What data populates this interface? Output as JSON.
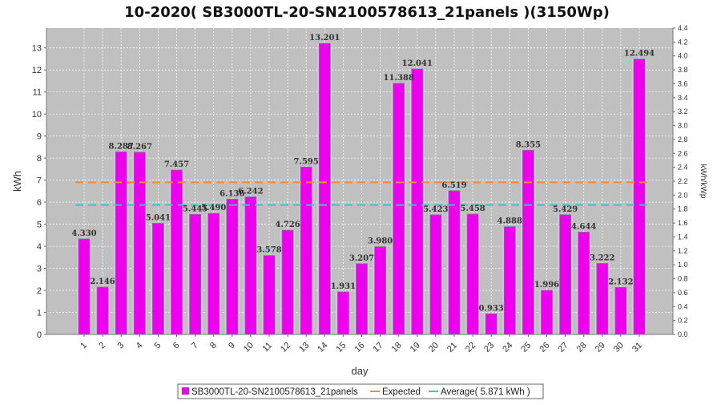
{
  "chart_data": {
    "type": "bar",
    "title": "10-2020( SB3000TL-20-SN2100578613_21panels )(3150Wp)",
    "xlabel": "day",
    "ylabel": "kWh",
    "y2label": "kWh/kWp",
    "ylim": [
      0,
      13.9
    ],
    "y2lim": [
      0,
      4.4
    ],
    "yticks": [
      0,
      1,
      2,
      3,
      4,
      5,
      6,
      7,
      8,
      9,
      10,
      11,
      12,
      13
    ],
    "y2ticks": [
      "0.0",
      "0.2",
      "0.4",
      "0.6",
      "0.8",
      "1.0",
      "1.2",
      "1.4",
      "1.6",
      "1.8",
      "2.0",
      "2.2",
      "2.4",
      "2.6",
      "2.8",
      "3.0",
      "3.2",
      "3.4",
      "3.6",
      "3.8",
      "4.0",
      "4.2",
      "4.4"
    ],
    "categories": [
      "1",
      "2",
      "3",
      "4",
      "5",
      "6",
      "7",
      "8",
      "9",
      "10",
      "11",
      "12",
      "13",
      "14",
      "15",
      "16",
      "17",
      "18",
      "19",
      "20",
      "21",
      "22",
      "23",
      "24",
      "25",
      "26",
      "27",
      "28",
      "29",
      "30",
      "31"
    ],
    "series": [
      {
        "name": "SB3000TL-20-SN2100578613_21panels",
        "color": "#ee00ee",
        "values": [
          4.33,
          2.146,
          8.287,
          8.267,
          5.041,
          7.457,
          5.445,
          5.49,
          6.136,
          6.242,
          3.578,
          4.726,
          7.595,
          13.201,
          1.931,
          3.207,
          3.98,
          11.388,
          12.041,
          5.423,
          6.519,
          5.458,
          0.933,
          4.888,
          8.355,
          1.996,
          5.429,
          4.644,
          3.222,
          2.132,
          12.494
        ],
        "value_labels": [
          "4.330",
          "2.146",
          "8.287",
          "8.267",
          "5.041",
          "7.457",
          "5.445",
          "5.490",
          "6.136",
          "6.242",
          "3.578",
          "4.726",
          "7.595",
          "13.201",
          "1.931",
          "3.207",
          "3.980",
          "11.388",
          "12.041",
          "5.423",
          "6.519",
          "5.458",
          "0.933",
          "4.888",
          "8.355",
          "1.996",
          "5.429",
          "4.644",
          "3.222",
          "2.132",
          "12.494"
        ]
      }
    ],
    "lines": [
      {
        "name": "Expected",
        "value": 6.9,
        "color": "#f08c3c"
      },
      {
        "name": "Average( 5.871 kWh )",
        "value": 5.871,
        "color": "#3cc4c8"
      }
    ],
    "grid": true,
    "legend_position": "bottom",
    "background": "#c0c0c0"
  }
}
